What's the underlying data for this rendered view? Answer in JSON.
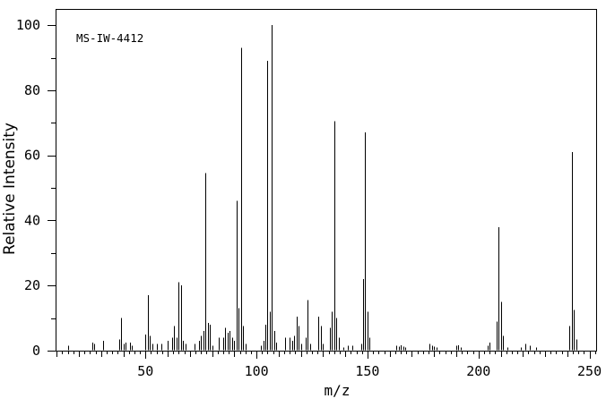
{
  "figure": {
    "background": "#ffffff",
    "line_color": "#000000"
  },
  "chart_data": {
    "type": "bar",
    "chart_kind": "mass-spectrum",
    "annotation": "MS-IW-4412",
    "xlabel": "m/z",
    "ylabel": "Relative Intensity",
    "xlim": [
      9.5,
      253
    ],
    "ylim": [
      0,
      105
    ],
    "x_major_ticks": [
      50,
      100,
      150,
      200,
      250
    ],
    "x_medium_tick_step": 10,
    "x_minor_tick_step": 2.5,
    "y_major_ticks": [
      0,
      20,
      40,
      60,
      80,
      100
    ],
    "y_minor_tick_step": 10,
    "grid": false,
    "bar_color": "#000000",
    "series": [
      {
        "name": "relative-intensity",
        "points": [
          [
            15,
            1.5
          ],
          [
            26,
            2.5
          ],
          [
            27,
            2
          ],
          [
            31,
            3
          ],
          [
            38,
            3.5
          ],
          [
            39,
            10
          ],
          [
            40,
            2
          ],
          [
            41,
            2.5
          ],
          [
            43,
            2.5
          ],
          [
            44,
            1.5
          ],
          [
            50,
            5
          ],
          [
            51,
            17
          ],
          [
            52,
            4.5
          ],
          [
            53,
            2
          ],
          [
            55,
            2
          ],
          [
            57,
            2
          ],
          [
            60,
            3
          ],
          [
            62,
            4
          ],
          [
            63,
            7.5
          ],
          [
            64,
            4
          ],
          [
            65,
            21
          ],
          [
            66,
            20
          ],
          [
            67,
            3
          ],
          [
            68,
            2
          ],
          [
            72,
            2
          ],
          [
            74,
            3
          ],
          [
            75,
            4.5
          ],
          [
            76,
            6
          ],
          [
            77,
            54.5
          ],
          [
            78,
            8.5
          ],
          [
            79,
            8
          ],
          [
            80,
            1.5
          ],
          [
            83,
            4
          ],
          [
            85,
            4
          ],
          [
            86,
            7
          ],
          [
            87,
            5.5
          ],
          [
            88,
            6
          ],
          [
            89,
            4
          ],
          [
            90,
            3
          ],
          [
            91,
            46
          ],
          [
            92,
            13
          ],
          [
            93,
            93
          ],
          [
            94,
            7.5
          ],
          [
            95,
            2
          ],
          [
            102,
            1.5
          ],
          [
            103,
            3
          ],
          [
            104,
            8
          ],
          [
            105,
            89
          ],
          [
            106,
            12
          ],
          [
            107,
            100
          ],
          [
            108,
            6
          ],
          [
            109,
            2.5
          ],
          [
            113,
            4
          ],
          [
            115,
            4
          ],
          [
            116,
            3
          ],
          [
            117,
            4.5
          ],
          [
            118,
            10.5
          ],
          [
            119,
            7.5
          ],
          [
            120,
            2
          ],
          [
            122,
            4
          ],
          [
            123,
            15.5
          ],
          [
            124,
            2
          ],
          [
            128,
            10.5
          ],
          [
            129,
            7.5
          ],
          [
            130,
            2
          ],
          [
            133,
            7
          ],
          [
            134,
            12
          ],
          [
            135,
            70.5
          ],
          [
            136,
            10
          ],
          [
            137,
            4
          ],
          [
            139,
            1
          ],
          [
            141,
            1.5
          ],
          [
            143,
            1.5
          ],
          [
            147,
            2
          ],
          [
            148,
            22
          ],
          [
            149,
            67
          ],
          [
            150,
            12
          ],
          [
            151,
            4
          ],
          [
            163,
            1.5
          ],
          [
            164,
            1.3
          ],
          [
            165,
            1.7
          ],
          [
            166,
            1.3
          ],
          [
            167,
            1
          ],
          [
            178,
            2
          ],
          [
            179,
            1.5
          ],
          [
            180,
            1.3
          ],
          [
            181,
            1
          ],
          [
            190,
            1.5
          ],
          [
            191,
            1.7
          ],
          [
            192,
            1
          ],
          [
            204,
            1.5
          ],
          [
            205,
            2.5
          ],
          [
            208,
            9
          ],
          [
            209,
            38
          ],
          [
            210,
            15
          ],
          [
            211,
            4.5
          ],
          [
            213,
            1
          ],
          [
            219,
            1
          ],
          [
            221,
            2
          ],
          [
            223,
            1.5
          ],
          [
            226,
            1
          ],
          [
            241,
            7.5
          ],
          [
            242,
            61
          ],
          [
            243,
            12.5
          ],
          [
            244,
            3.5
          ]
        ]
      }
    ]
  }
}
